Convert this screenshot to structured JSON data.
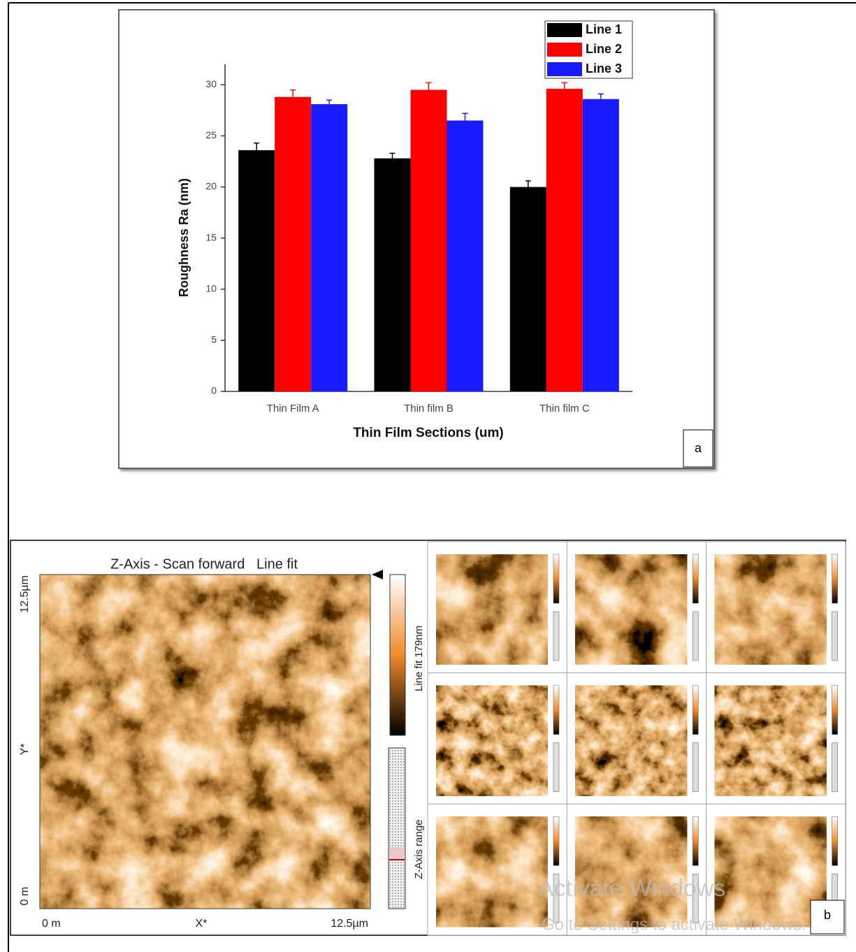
{
  "chart_data": {
    "type": "bar",
    "panel_label": "a",
    "x_label": "Thin Film Sections (um)",
    "y_label": "Roughness Ra (nm)",
    "categories": [
      "Thin Film A",
      "Thin film B",
      "Thin film C"
    ],
    "series": [
      {
        "name": "Line 1",
        "color": "#000000",
        "values": [
          23.6,
          22.8,
          20.0
        ],
        "errors": [
          0.7,
          0.5,
          0.6
        ]
      },
      {
        "name": "Line 2",
        "color": "#ff0000",
        "values": [
          28.8,
          29.5,
          29.6
        ],
        "errors": [
          0.7,
          0.7,
          0.6
        ]
      },
      {
        "name": "Line 3",
        "color": "#1a1aff",
        "values": [
          28.1,
          26.5,
          28.6
        ],
        "errors": [
          0.4,
          0.7,
          0.5
        ]
      }
    ],
    "ylim": [
      0,
      32
    ],
    "yticks": [
      0,
      5,
      10,
      15,
      20,
      25,
      30
    ],
    "legend": "upper right"
  },
  "afm_panel": {
    "title": "Z-Axis - Scan forward   Line fit",
    "y_top": "12.5µm",
    "y_bottom": "0 m",
    "y_label": "Y*",
    "x_left": "0 m",
    "x_label": "X*",
    "x_right": "12.5µm",
    "colorbar_label": "Line fit 179nm",
    "range_label": "Z-Axis range",
    "panel_label": "b",
    "watermark": [
      "Activate Windows",
      "Go to Settings to activate Windows."
    ]
  }
}
